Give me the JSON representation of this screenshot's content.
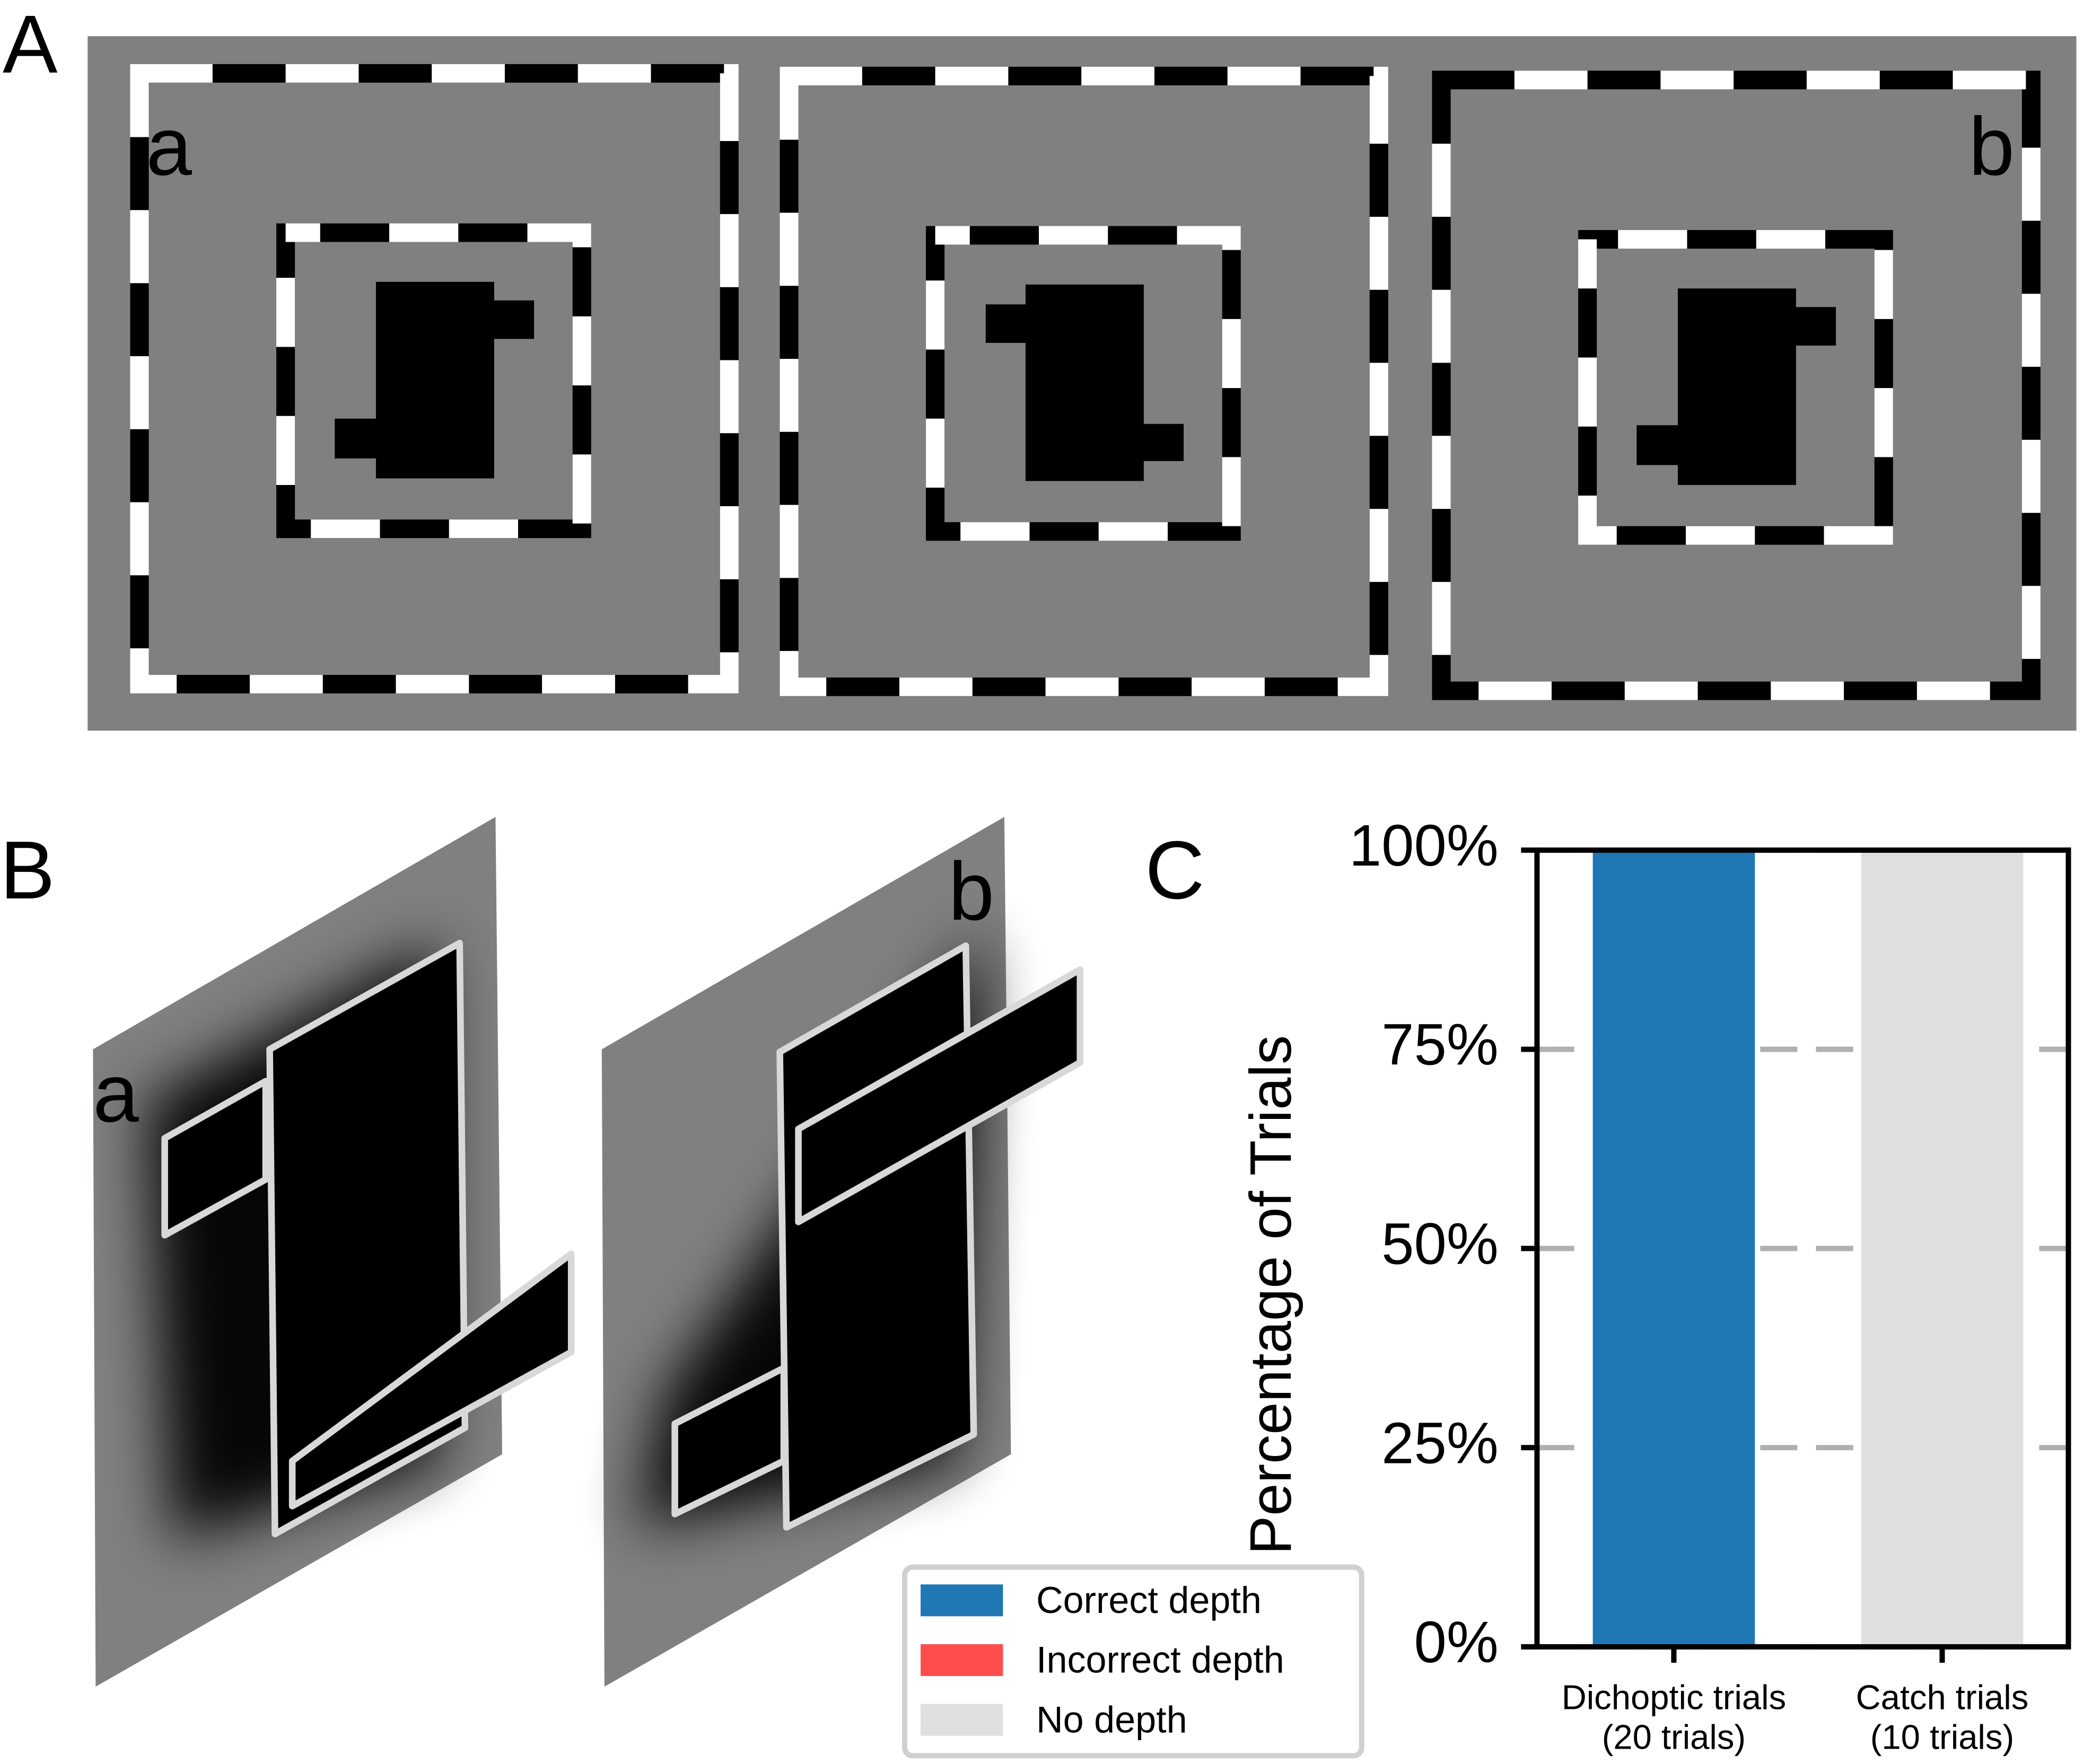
{
  "panels": {
    "A": {
      "label": "A",
      "sub_labels": [
        "a",
        "b"
      ]
    },
    "B": {
      "label": "B",
      "sub_labels": [
        "a",
        "b"
      ]
    },
    "C": {
      "label": "C"
    }
  },
  "chart_data": {
    "type": "stacked_bar",
    "y_axis_label": "Percentage of Trials",
    "categories": [
      [
        "Dichoptic trials",
        "(20 trials)"
      ],
      [
        "Catch trials",
        "(10 trials)"
      ]
    ],
    "series": [
      {
        "name": "Correct depth",
        "color": "#1f77b4",
        "values": [
          100,
          0
        ]
      },
      {
        "name": "Incorrect depth",
        "color": "#ff4d4d",
        "values": [
          0,
          0
        ]
      },
      {
        "name": "No depth",
        "color": "#e0e0e0",
        "values": [
          0,
          100
        ]
      }
    ],
    "ylim": [
      0,
      100
    ],
    "yticks": [
      {
        "value": 0,
        "label": "0%"
      },
      {
        "value": 25,
        "label": "25%"
      },
      {
        "value": 50,
        "label": "50%"
      },
      {
        "value": 75,
        "label": "75%"
      },
      {
        "value": 100,
        "label": "100%"
      }
    ],
    "grid": true,
    "legend": "lower left"
  }
}
